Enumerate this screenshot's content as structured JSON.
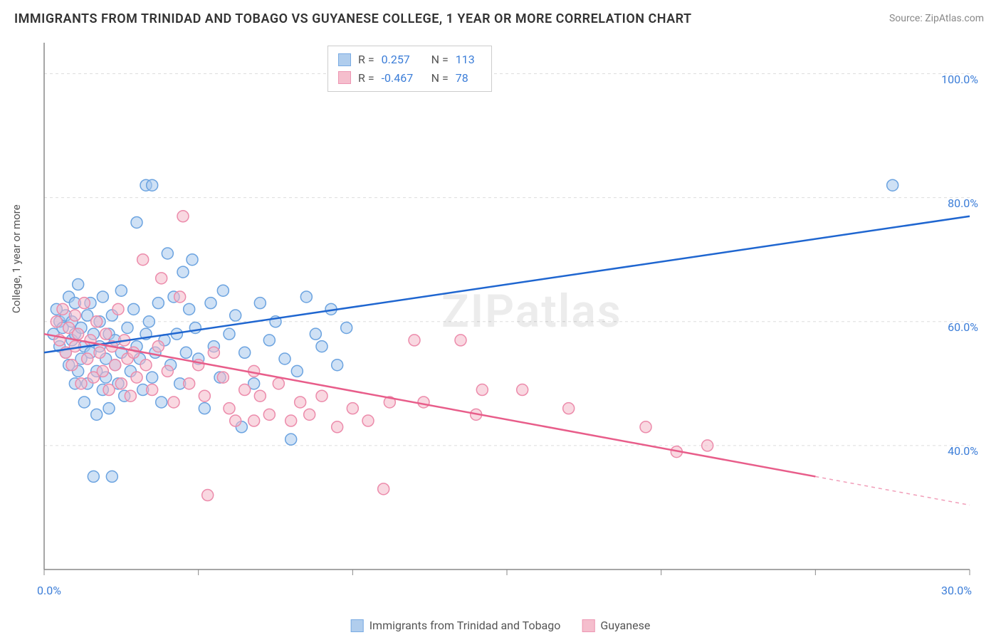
{
  "title": "IMMIGRANTS FROM TRINIDAD AND TOBAGO VS GUYANESE COLLEGE, 1 YEAR OR MORE CORRELATION CHART",
  "source": "Source: ZipAtlas.com",
  "y_axis_label": "College, 1 year or more",
  "watermark": "ZIPatlas",
  "chart": {
    "type": "scatter",
    "background_color": "#ffffff",
    "grid_color": "#dddddd",
    "grid_dash": "4,4",
    "axis_color": "#888888",
    "xlim": [
      0,
      30
    ],
    "ylim": [
      20,
      105
    ],
    "x_ticks": [
      0,
      5,
      10,
      15,
      20,
      25,
      30
    ],
    "x_tick_labels": [
      "0.0%",
      "",
      "",
      "",
      "",
      "",
      "30.0%"
    ],
    "y_ticks": [
      40,
      60,
      80,
      100
    ],
    "y_tick_labels": [
      "40.0%",
      "60.0%",
      "80.0%",
      "100.0%"
    ],
    "marker_radius": 8,
    "marker_stroke_width": 1.5,
    "trend_line_width": 2.5,
    "label_fontsize": 16,
    "label_color": "#3b7dd8"
  },
  "series": [
    {
      "name": "Immigrants from Trinidad and Tobago",
      "fill": "#a8c8ec",
      "stroke": "#6ba3e0",
      "fill_opacity": 0.55,
      "trend_color": "#1f66d0",
      "trend": {
        "x1": 0,
        "y1": 55,
        "x2": 30,
        "y2": 77
      },
      "stats": {
        "R": "0.257",
        "N": "113"
      },
      "points": [
        [
          0.3,
          58
        ],
        [
          0.4,
          62
        ],
        [
          0.5,
          56
        ],
        [
          0.5,
          60
        ],
        [
          0.6,
          59
        ],
        [
          0.7,
          61
        ],
        [
          0.7,
          55
        ],
        [
          0.8,
          64
        ],
        [
          0.8,
          53
        ],
        [
          0.9,
          57
        ],
        [
          0.9,
          60
        ],
        [
          1.0,
          50
        ],
        [
          1.0,
          63
        ],
        [
          1.0,
          58
        ],
        [
          1.1,
          52
        ],
        [
          1.1,
          66
        ],
        [
          1.2,
          54
        ],
        [
          1.2,
          59
        ],
        [
          1.3,
          56
        ],
        [
          1.3,
          47
        ],
        [
          1.4,
          61
        ],
        [
          1.4,
          50
        ],
        [
          1.5,
          55
        ],
        [
          1.5,
          63
        ],
        [
          1.6,
          35
        ],
        [
          1.6,
          58
        ],
        [
          1.7,
          52
        ],
        [
          1.7,
          45
        ],
        [
          1.8,
          60
        ],
        [
          1.8,
          56
        ],
        [
          1.9,
          49
        ],
        [
          1.9,
          64
        ],
        [
          2.0,
          54
        ],
        [
          2.0,
          51
        ],
        [
          2.1,
          58
        ],
        [
          2.1,
          46
        ],
        [
          2.2,
          35
        ],
        [
          2.2,
          61
        ],
        [
          2.3,
          53
        ],
        [
          2.3,
          57
        ],
        [
          2.4,
          50
        ],
        [
          2.5,
          65
        ],
        [
          2.5,
          55
        ],
        [
          2.6,
          48
        ],
        [
          2.7,
          59
        ],
        [
          2.8,
          52
        ],
        [
          2.9,
          62
        ],
        [
          3.0,
          56
        ],
        [
          3.0,
          76
        ],
        [
          3.1,
          54
        ],
        [
          3.2,
          49
        ],
        [
          3.3,
          82
        ],
        [
          3.3,
          58
        ],
        [
          3.4,
          60
        ],
        [
          3.5,
          82
        ],
        [
          3.5,
          51
        ],
        [
          3.6,
          55
        ],
        [
          3.7,
          63
        ],
        [
          3.8,
          47
        ],
        [
          3.9,
          57
        ],
        [
          4.0,
          71
        ],
        [
          4.1,
          53
        ],
        [
          4.2,
          64
        ],
        [
          4.3,
          58
        ],
        [
          4.4,
          50
        ],
        [
          4.5,
          68
        ],
        [
          4.6,
          55
        ],
        [
          4.7,
          62
        ],
        [
          4.8,
          70
        ],
        [
          4.9,
          59
        ],
        [
          5.0,
          54
        ],
        [
          5.2,
          46
        ],
        [
          5.4,
          63
        ],
        [
          5.5,
          56
        ],
        [
          5.7,
          51
        ],
        [
          5.8,
          65
        ],
        [
          6.0,
          58
        ],
        [
          6.2,
          61
        ],
        [
          6.4,
          43
        ],
        [
          6.5,
          55
        ],
        [
          6.8,
          50
        ],
        [
          7.0,
          63
        ],
        [
          7.3,
          57
        ],
        [
          7.5,
          60
        ],
        [
          7.8,
          54
        ],
        [
          8.0,
          41
        ],
        [
          8.2,
          52
        ],
        [
          8.5,
          64
        ],
        [
          8.8,
          58
        ],
        [
          9.0,
          56
        ],
        [
          9.3,
          62
        ],
        [
          9.5,
          53
        ],
        [
          9.8,
          59
        ],
        [
          27.5,
          82
        ]
      ]
    },
    {
      "name": "Guyanese",
      "fill": "#f4b8c8",
      "stroke": "#ec8bab",
      "fill_opacity": 0.55,
      "trend_color": "#e85d8a",
      "trend": {
        "x1": 0,
        "y1": 58,
        "x2": 25,
        "y2": 35
      },
      "trend_dash": {
        "x1": 25,
        "y1": 35,
        "x2": 30,
        "y2": 30.4
      },
      "stats": {
        "R": "-0.467",
        "N": "78"
      },
      "points": [
        [
          0.4,
          60
        ],
        [
          0.5,
          57
        ],
        [
          0.6,
          62
        ],
        [
          0.7,
          55
        ],
        [
          0.8,
          59
        ],
        [
          0.9,
          53
        ],
        [
          1.0,
          61
        ],
        [
          1.0,
          56
        ],
        [
          1.1,
          58
        ],
        [
          1.2,
          50
        ],
        [
          1.3,
          63
        ],
        [
          1.4,
          54
        ],
        [
          1.5,
          57
        ],
        [
          1.6,
          51
        ],
        [
          1.7,
          60
        ],
        [
          1.8,
          55
        ],
        [
          1.9,
          52
        ],
        [
          2.0,
          58
        ],
        [
          2.1,
          49
        ],
        [
          2.2,
          56
        ],
        [
          2.3,
          53
        ],
        [
          2.4,
          62
        ],
        [
          2.5,
          50
        ],
        [
          2.6,
          57
        ],
        [
          2.7,
          54
        ],
        [
          2.8,
          48
        ],
        [
          2.9,
          55
        ],
        [
          3.0,
          51
        ],
        [
          3.2,
          70
        ],
        [
          3.3,
          53
        ],
        [
          3.5,
          49
        ],
        [
          3.7,
          56
        ],
        [
          3.8,
          67
        ],
        [
          4.0,
          52
        ],
        [
          4.2,
          47
        ],
        [
          4.4,
          64
        ],
        [
          4.5,
          77
        ],
        [
          4.7,
          50
        ],
        [
          5.0,
          53
        ],
        [
          5.2,
          48
        ],
        [
          5.3,
          32
        ],
        [
          5.5,
          55
        ],
        [
          5.8,
          51
        ],
        [
          6.0,
          46
        ],
        [
          6.2,
          44
        ],
        [
          6.5,
          49
        ],
        [
          6.8,
          44
        ],
        [
          6.8,
          52
        ],
        [
          7.0,
          48
        ],
        [
          7.3,
          45
        ],
        [
          7.6,
          50
        ],
        [
          8.0,
          44
        ],
        [
          8.3,
          47
        ],
        [
          8.6,
          45
        ],
        [
          9.0,
          48
        ],
        [
          9.5,
          43
        ],
        [
          10.0,
          46
        ],
        [
          10.5,
          44
        ],
        [
          11.0,
          33
        ],
        [
          11.2,
          47
        ],
        [
          12.0,
          57
        ],
        [
          12.3,
          47
        ],
        [
          13.5,
          57
        ],
        [
          14.0,
          45
        ],
        [
          14.2,
          49
        ],
        [
          15.5,
          49
        ],
        [
          17.0,
          46
        ],
        [
          19.5,
          43
        ],
        [
          20.5,
          39
        ],
        [
          21.5,
          40
        ]
      ]
    }
  ],
  "stats_box_labels": {
    "R": "R =",
    "N": "N ="
  },
  "bottom_legend": {
    "items": [
      "Immigrants from Trinidad and Tobago",
      "Guyanese"
    ]
  }
}
